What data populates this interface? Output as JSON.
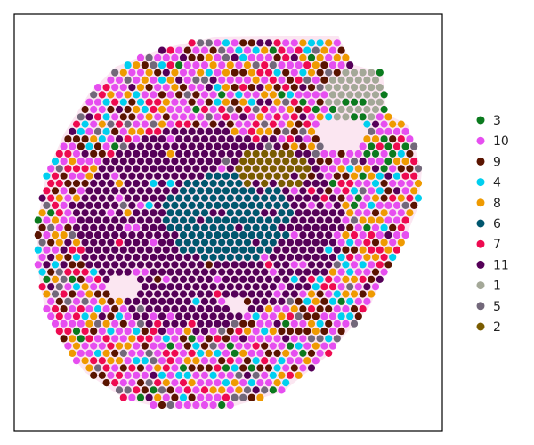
{
  "chart_data": {
    "type": "scatter",
    "title": "",
    "xlabel": "",
    "ylabel": "",
    "grid": false,
    "axes_ticks": false,
    "legend_placement": "right",
    "legend": [
      {
        "name": "3",
        "color": "#0b7a1e"
      },
      {
        "name": "10",
        "color": "#e64ef0"
      },
      {
        "name": "9",
        "color": "#5a1400"
      },
      {
        "name": "4",
        "color": "#00cfef"
      },
      {
        "name": "8",
        "color": "#ef9a00"
      },
      {
        "name": "6",
        "color": "#00566e"
      },
      {
        "name": "7",
        "color": "#ee0a50"
      },
      {
        "name": "11",
        "color": "#550058"
      },
      {
        "name": "1",
        "color": "#a4a898"
      },
      {
        "name": "5",
        "color": "#72687a"
      },
      {
        "name": "2",
        "color": "#7a5c00"
      }
    ],
    "tissue_background_color": "#f7c8e0"
  }
}
